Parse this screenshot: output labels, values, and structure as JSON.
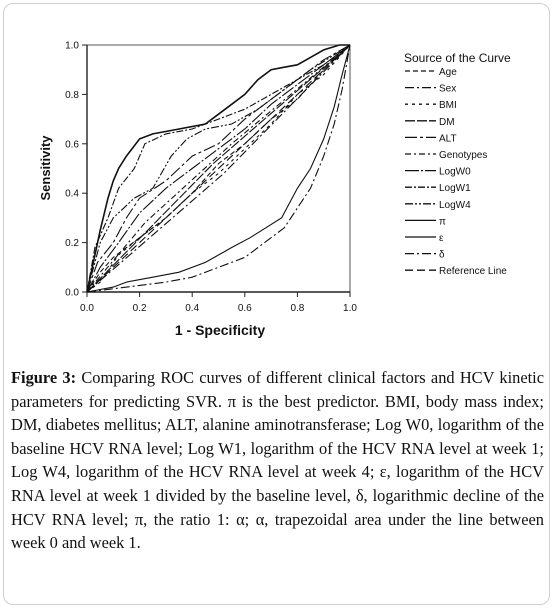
{
  "chart_data": {
    "type": "line",
    "xlabel": "1 - Specificity",
    "ylabel": "Sensitivity",
    "xlim": [
      0,
      1
    ],
    "ylim": [
      0,
      1
    ],
    "x_ticks": [
      "0.0",
      "0.2",
      "0.4",
      "0.6",
      "0.8",
      "1.0"
    ],
    "y_ticks": [
      "0.0",
      "0.2",
      "0.4",
      "0.6",
      "0.8",
      "1.0"
    ],
    "legend_title": "Source of the Curve",
    "legend_position": "right",
    "series": [
      {
        "name": "Age",
        "dash": "5,3",
        "points": [
          [
            0,
            0
          ],
          [
            0.05,
            0.08
          ],
          [
            0.1,
            0.14
          ],
          [
            0.2,
            0.22
          ],
          [
            0.3,
            0.3
          ],
          [
            0.4,
            0.4
          ],
          [
            0.5,
            0.52
          ],
          [
            0.6,
            0.6
          ],
          [
            0.7,
            0.7
          ],
          [
            0.8,
            0.78
          ],
          [
            0.9,
            0.9
          ],
          [
            1,
            1
          ]
        ]
      },
      {
        "name": "Sex",
        "dash": "9,3,2,3",
        "points": [
          [
            0,
            0
          ],
          [
            0.52,
            0.48
          ],
          [
            1,
            1
          ]
        ]
      },
      {
        "name": "BMI",
        "dash": "3,4",
        "points": [
          [
            0,
            0
          ],
          [
            0.05,
            0.04
          ],
          [
            0.12,
            0.15
          ],
          [
            0.2,
            0.22
          ],
          [
            0.3,
            0.3
          ],
          [
            0.4,
            0.4
          ],
          [
            0.5,
            0.48
          ],
          [
            0.6,
            0.58
          ],
          [
            0.7,
            0.68
          ],
          [
            0.8,
            0.8
          ],
          [
            0.9,
            0.88
          ],
          [
            1,
            1
          ]
        ]
      },
      {
        "name": "DM",
        "dash": "10,2",
        "points": [
          [
            0,
            0
          ],
          [
            0.48,
            0.52
          ],
          [
            1,
            1
          ]
        ]
      },
      {
        "name": "ALT",
        "dash": "12,3,3,3",
        "points": [
          [
            0,
            0
          ],
          [
            0.04,
            0.12
          ],
          [
            0.1,
            0.2
          ],
          [
            0.15,
            0.3
          ],
          [
            0.2,
            0.38
          ],
          [
            0.3,
            0.45
          ],
          [
            0.4,
            0.55
          ],
          [
            0.5,
            0.6
          ],
          [
            0.6,
            0.7
          ],
          [
            0.7,
            0.78
          ],
          [
            0.8,
            0.86
          ],
          [
            0.9,
            0.94
          ],
          [
            1,
            1
          ]
        ]
      },
      {
        "name": "Genotypes",
        "dash": "6,3,2,3",
        "points": [
          [
            0,
            0
          ],
          [
            0.22,
            0.28
          ],
          [
            0.55,
            0.6
          ],
          [
            1,
            1
          ]
        ]
      },
      {
        "name": "LogW0",
        "dash": "14,2,2,2",
        "points": [
          [
            0,
            0
          ],
          [
            0.05,
            0.1
          ],
          [
            0.12,
            0.2
          ],
          [
            0.2,
            0.32
          ],
          [
            0.3,
            0.42
          ],
          [
            0.4,
            0.5
          ],
          [
            0.5,
            0.58
          ],
          [
            0.6,
            0.66
          ],
          [
            0.7,
            0.76
          ],
          [
            0.8,
            0.84
          ],
          [
            0.9,
            0.92
          ],
          [
            1,
            1
          ]
        ]
      },
      {
        "name": "LogW1",
        "dash": "7,2,2,2",
        "points": [
          [
            0,
            0
          ],
          [
            0.03,
            0.18
          ],
          [
            0.08,
            0.3
          ],
          [
            0.12,
            0.42
          ],
          [
            0.18,
            0.5
          ],
          [
            0.22,
            0.6
          ],
          [
            0.3,
            0.64
          ],
          [
            0.4,
            0.66
          ],
          [
            0.5,
            0.7
          ],
          [
            0.6,
            0.74
          ],
          [
            0.7,
            0.8
          ],
          [
            0.8,
            0.86
          ],
          [
            0.9,
            0.92
          ],
          [
            1,
            1
          ]
        ]
      },
      {
        "name": "LogW4",
        "dash": "8,2,2,2,2,2",
        "points": [
          [
            0,
            0
          ],
          [
            0.05,
            0.2
          ],
          [
            0.1,
            0.3
          ],
          [
            0.18,
            0.38
          ],
          [
            0.25,
            0.42
          ],
          [
            0.32,
            0.55
          ],
          [
            0.38,
            0.62
          ],
          [
            0.45,
            0.66
          ],
          [
            0.55,
            0.68
          ],
          [
            0.65,
            0.74
          ],
          [
            0.75,
            0.82
          ],
          [
            0.85,
            0.9
          ],
          [
            1,
            1
          ]
        ]
      },
      {
        "name": "π",
        "dash": "",
        "points": [
          [
            0,
            0
          ],
          [
            0.02,
            0.1
          ],
          [
            0.05,
            0.25
          ],
          [
            0.08,
            0.38
          ],
          [
            0.1,
            0.45
          ],
          [
            0.12,
            0.5
          ],
          [
            0.15,
            0.55
          ],
          [
            0.2,
            0.62
          ],
          [
            0.25,
            0.64
          ],
          [
            0.35,
            0.66
          ],
          [
            0.45,
            0.68
          ],
          [
            0.5,
            0.72
          ],
          [
            0.6,
            0.8
          ],
          [
            0.65,
            0.86
          ],
          [
            0.7,
            0.9
          ],
          [
            0.75,
            0.91
          ],
          [
            0.8,
            0.92
          ],
          [
            0.85,
            0.95
          ],
          [
            0.9,
            0.98
          ],
          [
            0.96,
            1
          ],
          [
            1,
            1
          ]
        ]
      },
      {
        "name": "ε",
        "dash": "",
        "points": [
          [
            0,
            0
          ],
          [
            0.05,
            0.01
          ],
          [
            0.1,
            0.02
          ],
          [
            0.15,
            0.04
          ],
          [
            0.25,
            0.06
          ],
          [
            0.35,
            0.08
          ],
          [
            0.45,
            0.12
          ],
          [
            0.55,
            0.18
          ],
          [
            0.62,
            0.22
          ],
          [
            0.68,
            0.26
          ],
          [
            0.74,
            0.3
          ],
          [
            0.8,
            0.42
          ],
          [
            0.85,
            0.5
          ],
          [
            0.9,
            0.62
          ],
          [
            0.94,
            0.75
          ],
          [
            0.97,
            0.88
          ],
          [
            1,
            1
          ]
        ]
      },
      {
        "name": "δ",
        "dash": "9,3,2,3",
        "points": [
          [
            0,
            0
          ],
          [
            0.15,
            0.02
          ],
          [
            0.3,
            0.04
          ],
          [
            0.4,
            0.06
          ],
          [
            0.5,
            0.1
          ],
          [
            0.6,
            0.14
          ],
          [
            0.65,
            0.18
          ],
          [
            0.7,
            0.22
          ],
          [
            0.75,
            0.26
          ],
          [
            0.8,
            0.34
          ],
          [
            0.85,
            0.42
          ],
          [
            0.9,
            0.55
          ],
          [
            0.94,
            0.68
          ],
          [
            0.97,
            0.82
          ],
          [
            1,
            1
          ]
        ]
      },
      {
        "name": "Reference Line",
        "dash": "8,4",
        "points": [
          [
            0,
            0
          ],
          [
            1,
            1
          ]
        ]
      }
    ]
  },
  "caption": {
    "label": "Figure 3:",
    "text": "Comparing ROC curves of different clinical factors and HCV kinetic parameters for predicting SVR. π is the best predictor. BMI, body mass index; DM, diabetes mellitus; ALT, alanine aminotransferase; Log W0, logarithm of the baseline HCV RNA level; Log W1, logarithm of the HCV RNA level at week 1; Log W4, logarithm of the HCV RNA level at week 4; ε, logarithm of the HCV RNA level at week 1 divided by the baseline level, δ, logarithmic decline of the HCV RNA level; π, the ratio 1: α; α, trapezoidal area under the line between week 0 and week 1."
  }
}
